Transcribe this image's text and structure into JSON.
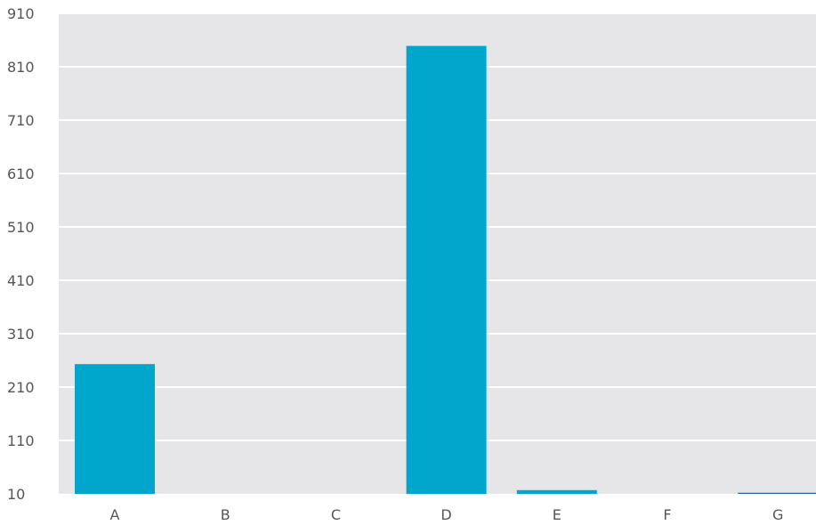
{
  "chart_data": {
    "type": "bar",
    "categories": [
      "A",
      "B",
      "C",
      "D",
      "E",
      "F",
      "G"
    ],
    "values": [
      253,
      0,
      0,
      849,
      17,
      2,
      12
    ],
    "ylim": [
      10,
      910
    ],
    "yticks": [
      10,
      110,
      210,
      310,
      410,
      510,
      610,
      710,
      810,
      910
    ],
    "ytick_labels": [
      "10",
      "110",
      "210",
      "310",
      "410",
      "510",
      "610",
      "710",
      "810",
      "910"
    ],
    "grid": true,
    "title": "",
    "xlabel": "",
    "ylabel": ""
  },
  "colors": {
    "plot_background": "#e6e6e9",
    "bar": "#00a6cb",
    "bar_small": "#1f5fa0",
    "gridline": "#ffffff"
  }
}
